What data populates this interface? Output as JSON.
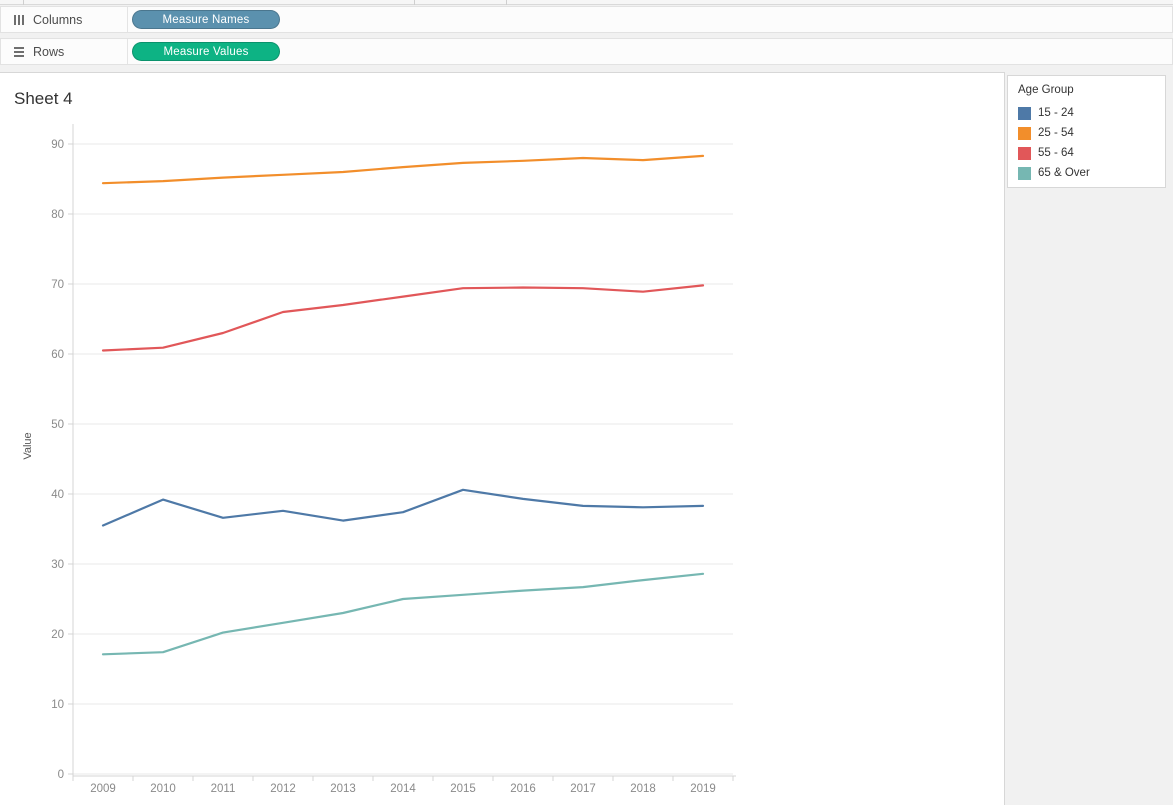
{
  "toolbar": {
    "columns_shelf": {
      "label": "Columns",
      "pill": {
        "label": "Measure Names",
        "color": "#5b91ae"
      }
    },
    "rows_shelf": {
      "label": "Rows",
      "pill": {
        "label": "Measure Values",
        "color": "#0db384"
      }
    }
  },
  "sheet": {
    "title": "Sheet 4"
  },
  "legend": {
    "title": "Age Group",
    "items": [
      {
        "label": "15 - 24",
        "color": "#4e79a7"
      },
      {
        "label": "25 - 54",
        "color": "#f28e2b"
      },
      {
        "label": "55 - 64",
        "color": "#e15759"
      },
      {
        "label": "65 & Over",
        "color": "#76b7b2"
      }
    ]
  },
  "chart_data": {
    "type": "line",
    "title": "Sheet 4",
    "xlabel": "",
    "ylabel": "Value",
    "x": [
      2009,
      2010,
      2011,
      2012,
      2013,
      2014,
      2015,
      2016,
      2017,
      2018,
      2019
    ],
    "yticks": [
      0,
      10,
      20,
      30,
      40,
      50,
      60,
      70,
      80,
      90
    ],
    "ylim": [
      0,
      93
    ],
    "grid": true,
    "legend_position": "top-right",
    "legend_title": "Age Group",
    "series": [
      {
        "name": "15 - 24",
        "color": "#4e79a7",
        "values": [
          35.5,
          39.2,
          36.6,
          37.6,
          36.2,
          37.4,
          40.6,
          39.3,
          38.3,
          38.1,
          38.3
        ]
      },
      {
        "name": "25 - 54",
        "color": "#f28e2b",
        "values": [
          84.4,
          84.7,
          85.2,
          85.6,
          86.0,
          86.7,
          87.3,
          87.6,
          88.0,
          87.7,
          88.3
        ]
      },
      {
        "name": "55 - 64",
        "color": "#e15759",
        "values": [
          60.5,
          60.9,
          63.0,
          66.0,
          67.0,
          68.2,
          69.4,
          69.5,
          69.4,
          68.9,
          69.8
        ]
      },
      {
        "name": "65 & Over",
        "color": "#76b7b2",
        "values": [
          17.1,
          17.4,
          20.2,
          21.6,
          23.0,
          25.0,
          25.6,
          26.2,
          26.7,
          27.7,
          28.6
        ]
      }
    ]
  }
}
